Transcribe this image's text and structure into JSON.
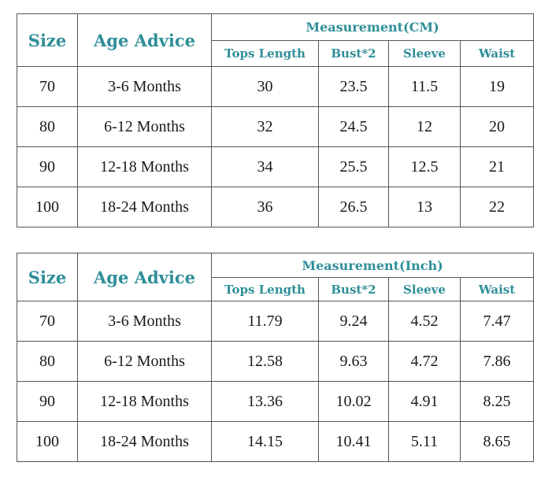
{
  "colors": {
    "header_text": "#2f8f98",
    "cell_text": "#1a1a1a",
    "border": "#555555"
  },
  "tables": [
    {
      "size_header": "Size",
      "age_header": "Age Advice",
      "measurement_header": "Measurement(CM)",
      "columns": [
        "Tops Length",
        "Bust*2",
        "Sleeve",
        "Waist"
      ],
      "rows": [
        {
          "size": "70",
          "age": "3-6 Months",
          "values": [
            "30",
            "23.5",
            "11.5",
            "19"
          ]
        },
        {
          "size": "80",
          "age": "6-12 Months",
          "values": [
            "32",
            "24.5",
            "12",
            "20"
          ]
        },
        {
          "size": "90",
          "age": "12-18 Months",
          "values": [
            "34",
            "25.5",
            "12.5",
            "21"
          ]
        },
        {
          "size": "100",
          "age": "18-24 Months",
          "values": [
            "36",
            "26.5",
            "13",
            "22"
          ]
        }
      ]
    },
    {
      "size_header": "Size",
      "age_header": "Age Advice",
      "measurement_header": "Measurement(Inch)",
      "columns": [
        "Tops Length",
        "Bust*2",
        "Sleeve",
        "Waist"
      ],
      "rows": [
        {
          "size": "70",
          "age": "3-6 Months",
          "values": [
            "11.79",
            "9.24",
            "4.52",
            "7.47"
          ]
        },
        {
          "size": "80",
          "age": "6-12 Months",
          "values": [
            "12.58",
            "9.63",
            "4.72",
            "7.86"
          ]
        },
        {
          "size": "90",
          "age": "12-18 Months",
          "values": [
            "13.36",
            "10.02",
            "4.91",
            "8.25"
          ]
        },
        {
          "size": "100",
          "age": "18-24 Months",
          "values": [
            "14.15",
            "10.41",
            "5.11",
            "8.65"
          ]
        }
      ]
    }
  ]
}
